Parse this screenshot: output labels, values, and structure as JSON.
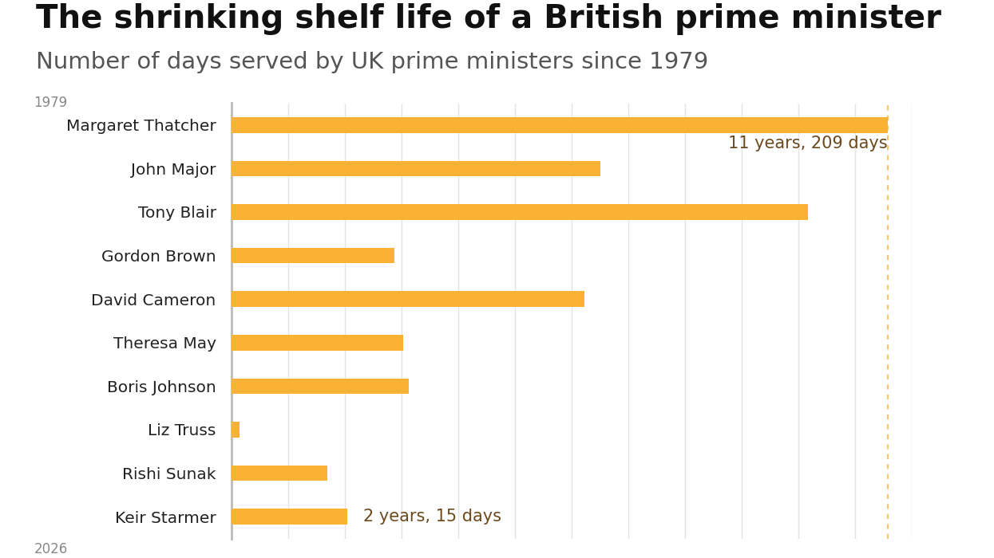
{
  "chart_data": {
    "type": "bar",
    "orientation": "horizontal",
    "title": "The shrinking shelf life of a British prime minister",
    "subtitle": "Number of days served by UK prime ministers since 1979",
    "start_label": "1979",
    "end_label": "2026",
    "categories": [
      "Margaret Thatcher",
      "John Major",
      "Tony Blair",
      "Gordon Brown",
      "David Cameron",
      "Theresa May",
      "Boris Johnson",
      "Liz Truss",
      "Rishi Sunak",
      "Keir Starmer"
    ],
    "values": [
      4227,
      2375,
      3711,
      1049,
      2275,
      1106,
      1139,
      49,
      619,
      746
    ],
    "color": "#f9b233",
    "xlim": [
      0,
      4380
    ],
    "xticks": [
      0,
      365,
      730,
      1095,
      1460,
      1825,
      2190,
      2555,
      2920,
      3285,
      3650,
      4015,
      4380
    ],
    "grid": true,
    "tick_labels": "y",
    "annotations": [
      {
        "category": "Margaret Thatcher",
        "text": "11 years, 209 days"
      },
      {
        "category": "Keir Starmer",
        "text": "2 years, 15 days"
      }
    ]
  }
}
